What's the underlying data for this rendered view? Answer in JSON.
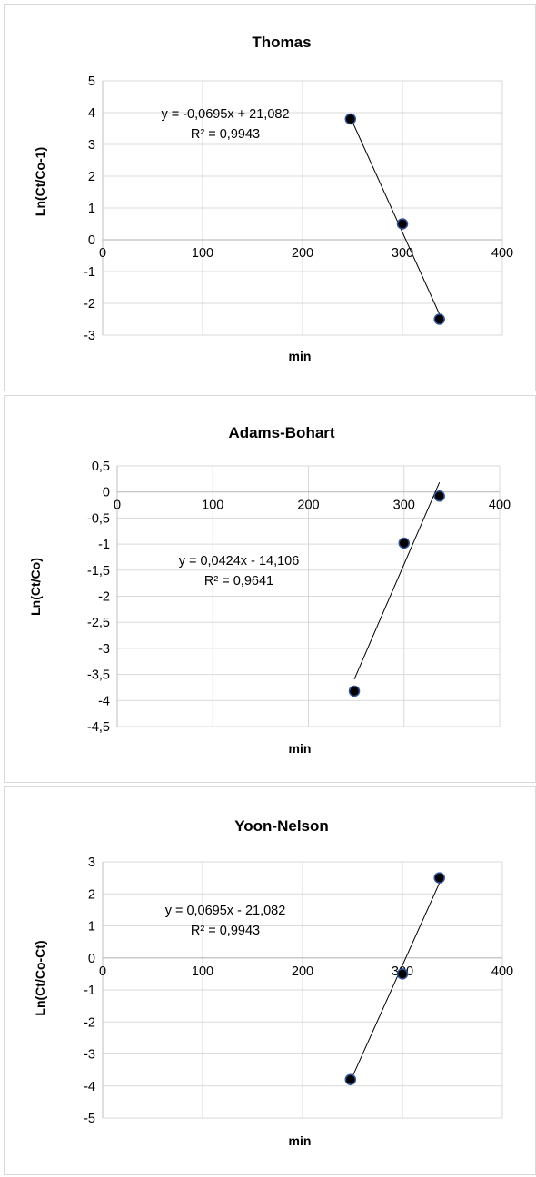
{
  "chart_data": [
    {
      "type": "scatter",
      "title": "Thomas",
      "xlabel": "min",
      "ylabel": "Ln(Ct/Co-1)",
      "xlim": [
        0,
        400
      ],
      "ylim": [
        -3,
        5
      ],
      "xticks": [
        0,
        100,
        200,
        300,
        400
      ],
      "xtick_labels": [
        "0",
        "100",
        "200",
        "300",
        "400"
      ],
      "yticks": [
        -3,
        -2,
        -1,
        0,
        1,
        2,
        3,
        4,
        5
      ],
      "ytick_labels": [
        "-3",
        "-2",
        "-1",
        "0",
        "1",
        "2",
        "3",
        "4",
        "5"
      ],
      "grid": true,
      "points": [
        {
          "x": 248,
          "y": 3.8
        },
        {
          "x": 300,
          "y": 0.5
        },
        {
          "x": 337,
          "y": -2.5
        }
      ],
      "trendline": {
        "slope": -0.0695,
        "intercept": 21.082,
        "x_range": [
          248,
          337
        ],
        "equation_label": "y = -0,0695x + 21,082",
        "r2_label": "R² = 0,9943"
      }
    },
    {
      "type": "scatter",
      "title": "Adams-Bohart",
      "xlabel": "min",
      "ylabel": "Ln(Ct/Co)",
      "xlim": [
        0,
        400
      ],
      "ylim": [
        -4.5,
        0.5
      ],
      "xticks": [
        0,
        100,
        200,
        300,
        400
      ],
      "xtick_labels": [
        "0",
        "100",
        "200",
        "300",
        "400"
      ],
      "yticks": [
        -4.5,
        -4,
        -3.5,
        -3,
        -2.5,
        -2,
        -1.5,
        -1,
        -0.5,
        0,
        0.5
      ],
      "ytick_labels": [
        "-4,5",
        "-4",
        "-3,5",
        "-3",
        "-2,5",
        "-2",
        "-1,5",
        "-1",
        "-0,5",
        "0",
        "0,5"
      ],
      "grid": true,
      "points": [
        {
          "x": 248,
          "y": -3.82
        },
        {
          "x": 300,
          "y": -0.98
        },
        {
          "x": 337,
          "y": -0.08
        }
      ],
      "trendline": {
        "slope": 0.0424,
        "intercept": -14.106,
        "x_range": [
          248,
          337
        ],
        "equation_label": "y = 0,0424x - 14,106",
        "r2_label": "R² = 0,9641"
      }
    },
    {
      "type": "scatter",
      "title": "Yoon-Nelson",
      "xlabel": "min",
      "ylabel": "Ln(Ct/Co-Ct)",
      "xlim": [
        0,
        400
      ],
      "ylim": [
        -5,
        3
      ],
      "xticks": [
        0,
        100,
        200,
        300,
        400
      ],
      "xtick_labels": [
        "0",
        "100",
        "200",
        "300",
        "400"
      ],
      "yticks": [
        -5,
        -4,
        -3,
        -2,
        -1,
        0,
        1,
        2,
        3
      ],
      "ytick_labels": [
        "-5",
        "-4",
        "-3",
        "-2",
        "-1",
        "0",
        "1",
        "2",
        "3"
      ],
      "grid": true,
      "points": [
        {
          "x": 248,
          "y": -3.8
        },
        {
          "x": 300,
          "y": -0.5
        },
        {
          "x": 337,
          "y": 2.5
        }
      ],
      "trendline": {
        "slope": 0.0695,
        "intercept": -21.082,
        "x_range": [
          248,
          337
        ],
        "equation_label": "y = 0,0695x - 21,082",
        "r2_label": "R² = 0,9943"
      }
    }
  ],
  "colors": {
    "marker_fill": "#000000",
    "marker_stroke": "#2f5597",
    "trendline": "#000000",
    "gridline": "#d9d9d9",
    "axis": "#bfbfbf"
  }
}
